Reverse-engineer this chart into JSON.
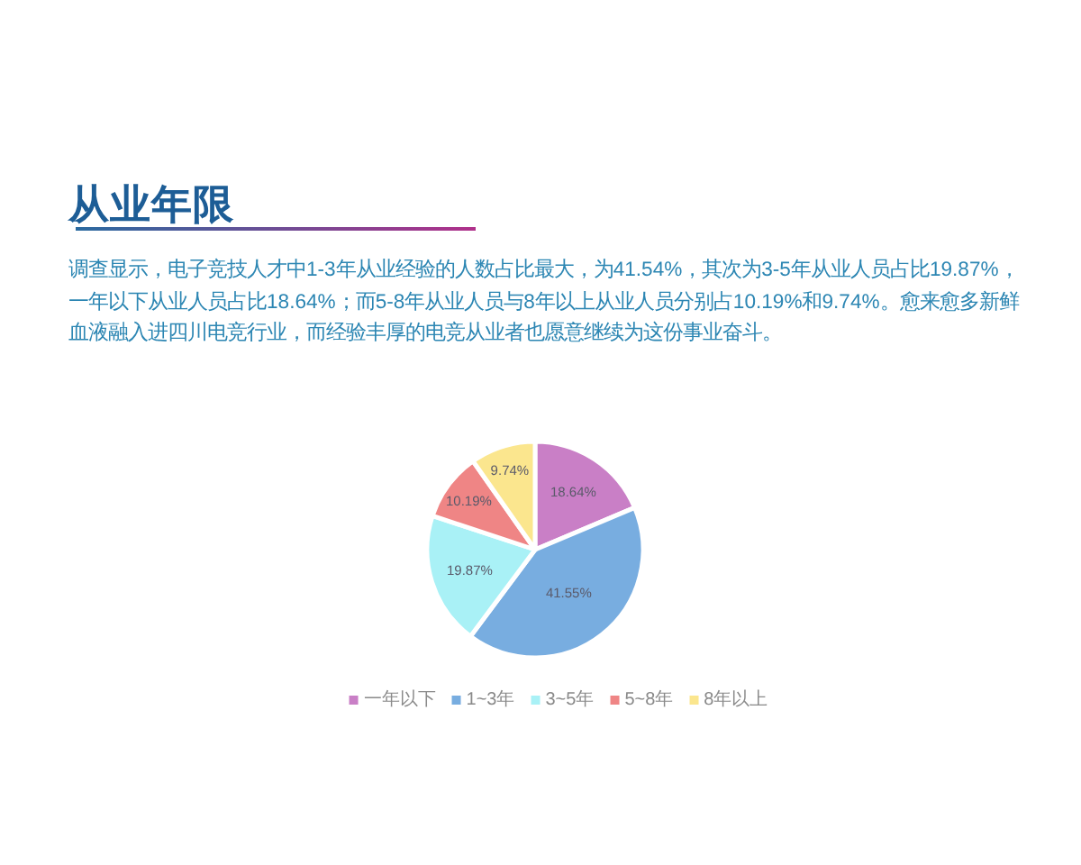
{
  "chart_data": {
    "type": "pie",
    "title": "从业年限",
    "subtitle": "调查显示，电子竞技人才中1-3年从业经验的人数占比最大，为41.54%，其次为3-5年从业人员占比19.87%，一年以下从业人员占比18.64%；而5-8年从业人员与8年以上从业人员分别占10.19%和9.74%。愈来愈多新鲜血液融入进四川电竞行业，而经验丰厚的电竞从业者也愿意继续为这份事业奋斗。",
    "categories": [
      "一年以下",
      "1~3年",
      "3~5年",
      "5~8年",
      "8年以上"
    ],
    "values": [
      18.64,
      41.55,
      19.87,
      10.19,
      9.74
    ],
    "colors": [
      "#c97fc6",
      "#78ade0",
      "#a9f1f6",
      "#ef8585",
      "#fbe68e"
    ],
    "value_labels": [
      "18.64%",
      "41.55%",
      "19.87%",
      "10.19%",
      "9.74%"
    ],
    "legend": "bottom"
  }
}
